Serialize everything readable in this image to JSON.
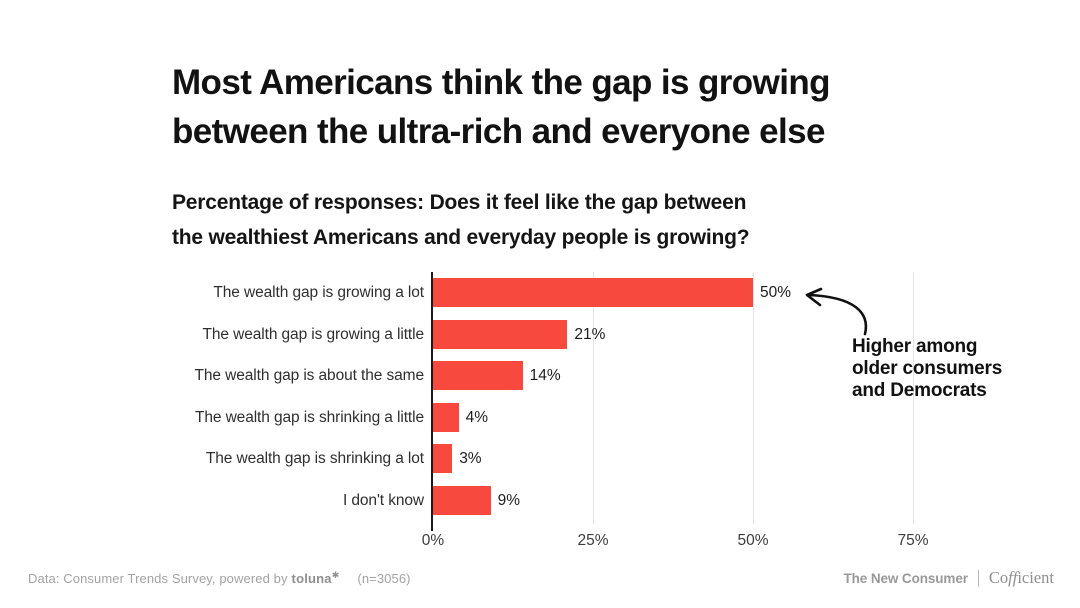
{
  "header": {
    "title_line1": "Most Americans think the gap is growing",
    "title_line2": "between the ultra-rich and everyone else",
    "subtitle_line1": "Percentage of responses: Does it feel like the gap between",
    "subtitle_line2": "the wealthiest Americans and everyday people is growing?"
  },
  "chart_data": {
    "type": "bar",
    "orientation": "horizontal",
    "title": "Most Americans think the gap is growing between the ultra-rich and everyone else",
    "subtitle": "Percentage of responses: Does it feel like the gap between the wealthiest Americans and everyday people is growing?",
    "categories": [
      "The wealth gap is growing a lot",
      "The wealth gap is growing a little",
      "The wealth gap is about the same",
      "The wealth gap is shrinking a little",
      "The wealth gap is shrinking a lot",
      "I don't know"
    ],
    "values": [
      50,
      21,
      14,
      4,
      3,
      9
    ],
    "value_labels": [
      "50%",
      "21%",
      "14%",
      "4%",
      "3%",
      "9%"
    ],
    "x_ticks": [
      {
        "label": "0%",
        "value": 0
      },
      {
        "label": "25%",
        "value": 25
      },
      {
        "label": "50%",
        "value": 50
      },
      {
        "label": "75%",
        "value": 75
      }
    ],
    "xlim": [
      0,
      87
    ],
    "grid": "vertical-light",
    "legend": "none",
    "bar_color": "#f8493e",
    "annotation": {
      "text": "Higher among older consumers and Democrats",
      "lines": [
        "Higher among",
        "older consumers",
        "and Democrats"
      ],
      "target_bar": "The wealth gap is growing a lot",
      "target_value": 50
    }
  },
  "footer": {
    "source_prefix": "Data: Consumer Trends Survey, powered by",
    "source_logo": "toluna",
    "source_logo_mark": "✱",
    "sample_size": "(n=3056)",
    "brand_left": "The New Consumer",
    "brand_right": "Coefficient",
    "brand_right_parts": [
      "Co",
      "ff",
      "icient"
    ]
  },
  "colors": {
    "bar": "#f8493e",
    "title_text": "#121212",
    "label_text": "#2f2f2f",
    "muted_text": "#a3a3a3",
    "gridline": "#e4e4e4",
    "axis": "#1a1a1a",
    "background": "#ffffff"
  }
}
